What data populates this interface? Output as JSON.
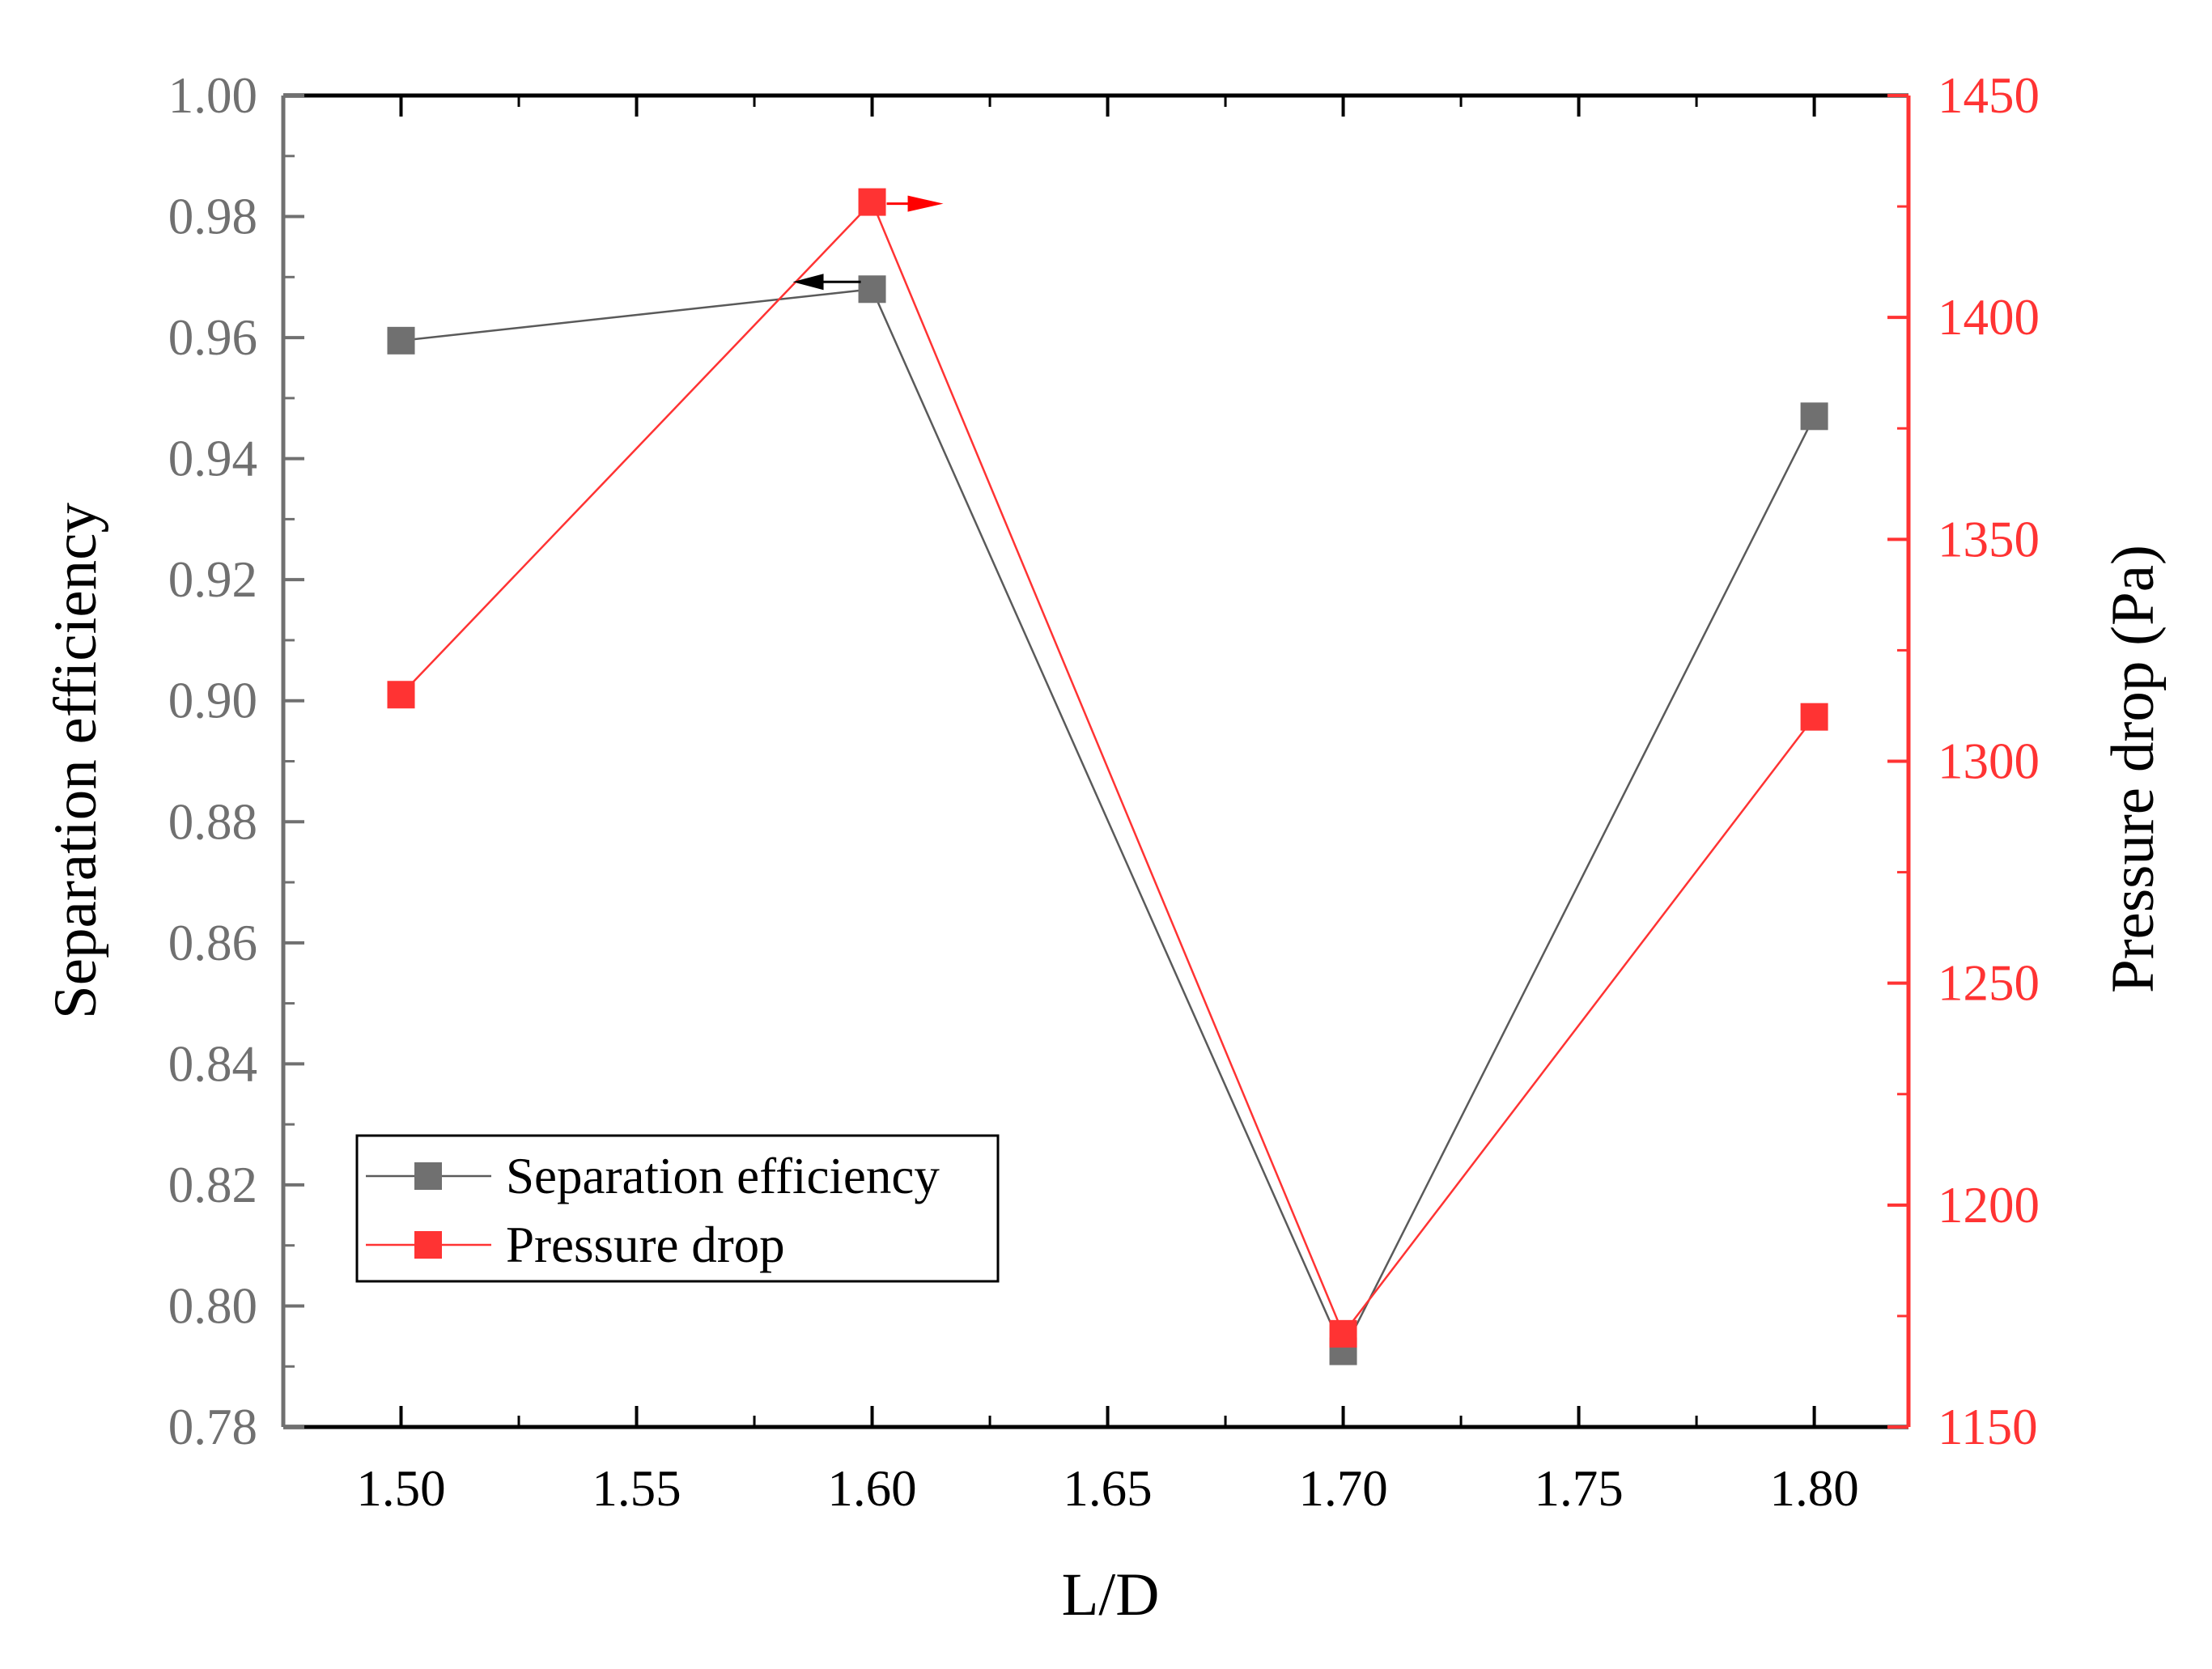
{
  "colors": {
    "efficiency": "#707070",
    "efficiency_line": "#5a5a5a",
    "pressure": "#ff3333",
    "pressure_axis": "#ff3333",
    "left_tick_text": "#707070",
    "axis_black": "#000000",
    "arrow_black": "#000000",
    "arrow_red": "#ff0000"
  },
  "chart_data": {
    "type": "line",
    "title": "",
    "xlabel": "L/D",
    "ylabel": "Separation efficiency",
    "y2label": "Pressure drop (Pa)",
    "x": [
      1.5,
      1.6,
      1.7,
      1.8
    ],
    "xlim": [
      1.475,
      1.82
    ],
    "ylim": [
      0.78,
      1.0
    ],
    "y2lim": [
      1150,
      1450
    ],
    "x_ticks": [
      "1.50",
      "1.55",
      "1.60",
      "1.65",
      "1.70",
      "1.75",
      "1.80"
    ],
    "y_ticks": [
      "0.78",
      "0.80",
      "0.82",
      "0.84",
      "0.86",
      "0.88",
      "0.90",
      "0.92",
      "0.94",
      "0.96",
      "0.98",
      "1.00"
    ],
    "y2_ticks": [
      "1150",
      "1200",
      "1250",
      "1300",
      "1350",
      "1400",
      "1450"
    ],
    "series": [
      {
        "name": "Separation efficiency",
        "axis": "left",
        "color_key": "efficiency",
        "values": [
          0.9595,
          0.968,
          0.7925,
          0.947
        ]
      },
      {
        "name": "Pressure drop",
        "axis": "right",
        "color_key": "pressure",
        "values": [
          1315,
          1426,
          1171,
          1310
        ]
      }
    ],
    "legend": {
      "placement": "bottom-left",
      "entries": [
        "Separation efficiency",
        "Pressure drop"
      ]
    },
    "grid": false,
    "annotations": [
      {
        "type": "arrow",
        "direction": "left",
        "anchor_series": "Separation efficiency",
        "anchor_x": 1.6,
        "meaning": "left axis"
      },
      {
        "type": "arrow",
        "direction": "right",
        "anchor_series": "Pressure drop",
        "anchor_x": 1.6,
        "meaning": "right axis"
      }
    ]
  }
}
